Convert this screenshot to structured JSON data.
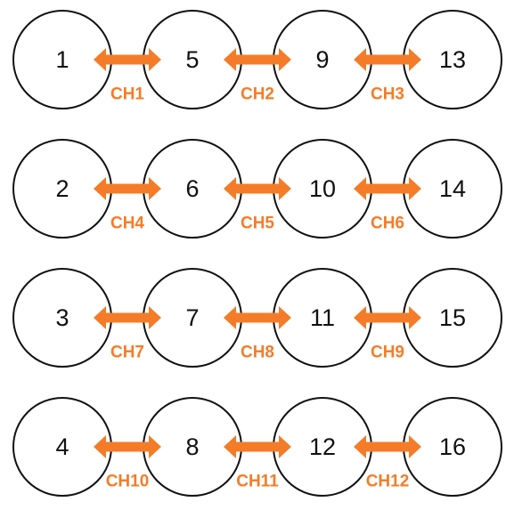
{
  "accent_color": "#f47c28",
  "rows": [
    {
      "nodes": [
        "1",
        "5",
        "9",
        "13"
      ],
      "channels": [
        "CH1",
        "CH2",
        "CH3"
      ]
    },
    {
      "nodes": [
        "2",
        "6",
        "10",
        "14"
      ],
      "channels": [
        "CH4",
        "CH5",
        "CH6"
      ]
    },
    {
      "nodes": [
        "3",
        "7",
        "11",
        "15"
      ],
      "channels": [
        "CH7",
        "CH8",
        "CH9"
      ]
    },
    {
      "nodes": [
        "4",
        "8",
        "12",
        "16"
      ],
      "channels": [
        "CH10",
        "CH11",
        "CH12"
      ]
    }
  ]
}
